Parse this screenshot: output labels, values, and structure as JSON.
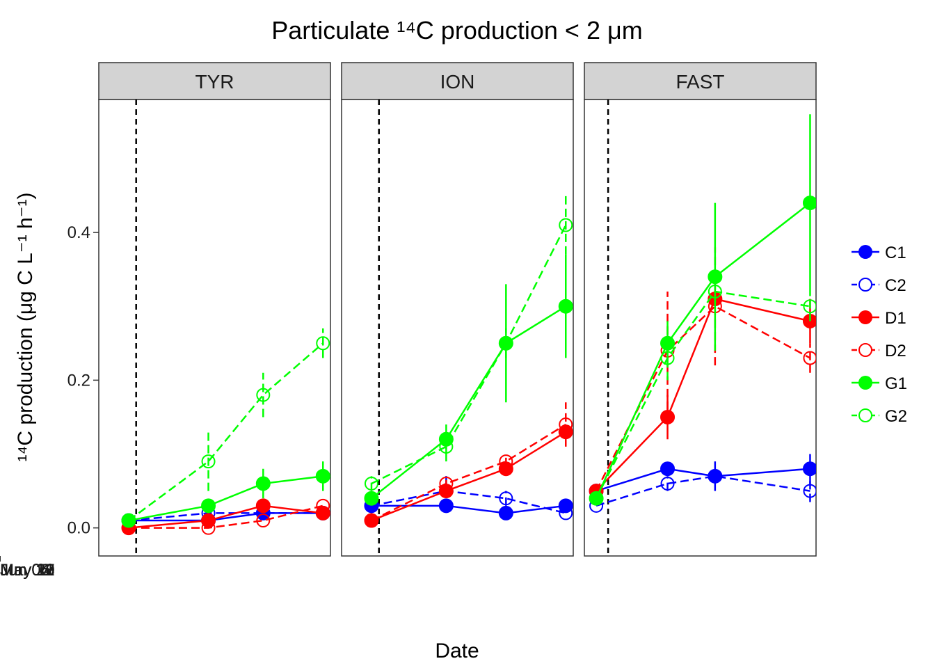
{
  "chart_data": {
    "type": "line",
    "title": "Particulate ¹⁴C production < 2 μm",
    "xlabel": "Date",
    "ylabel": "¹⁴C production (μg C L⁻¹ h⁻¹)",
    "ylim": [
      -0.038,
      0.58
    ],
    "yticks": [
      0.0,
      0.2,
      0.4
    ],
    "ytick_labels": [
      "0.0",
      "0.2",
      "0.4"
    ],
    "grid": false,
    "legend_position": "right",
    "colors": {
      "C1": "#0000ff",
      "C2": "#0000ff",
      "D1": "#ff0000",
      "D2": "#ff0000",
      "G1": "#00ff00",
      "G2": "#00ff00"
    },
    "series_styles": [
      {
        "name": "C1",
        "filled": true,
        "dashed": false
      },
      {
        "name": "C2",
        "filled": false,
        "dashed": true
      },
      {
        "name": "D1",
        "filled": true,
        "dashed": false
      },
      {
        "name": "D2",
        "filled": false,
        "dashed": true
      },
      {
        "name": "G1",
        "filled": true,
        "dashed": false
      },
      {
        "name": "G2",
        "filled": false,
        "dashed": true
      }
    ],
    "panels": [
      {
        "strip": "TYR",
        "xlim": [
          "2015-05-17 12:00",
          "2015-05-21 09:00"
        ],
        "vline": "2015-05-18 03:00",
        "xticks": [
          "2015-05-19",
          "2015-05-20",
          "2015-05-21"
        ],
        "xtick_labels": [
          "May 19",
          "May 20",
          "May 21"
        ],
        "x": [
          "2015-05-18 00:00",
          "2015-05-19 08:00",
          "2015-05-20 06:00",
          "2015-05-21 06:00"
        ],
        "series": [
          {
            "name": "C1",
            "values": [
              0.01,
              0.01,
              0.02,
              0.02
            ],
            "err": [
              0,
              0,
              0,
              0
            ]
          },
          {
            "name": "C2",
            "values": [
              0.01,
              0.02,
              0.02,
              0.02
            ],
            "err": [
              0,
              0,
              0,
              0
            ]
          },
          {
            "name": "D1",
            "values": [
              0.0,
              0.01,
              0.03,
              0.02
            ],
            "err": [
              0,
              0.005,
              0.005,
              0.005
            ]
          },
          {
            "name": "D2",
            "values": [
              0.0,
              0.0,
              0.01,
              0.03
            ],
            "err": [
              0,
              0,
              0,
              0
            ]
          },
          {
            "name": "G1",
            "values": [
              0.01,
              0.03,
              0.06,
              0.07
            ],
            "err": [
              0,
              0.005,
              0.02,
              0.02
            ]
          },
          {
            "name": "G2",
            "values": [
              0.01,
              0.09,
              0.18,
              0.25
            ],
            "err": [
              0,
              0.04,
              0.03,
              0.02
            ]
          }
        ]
      },
      {
        "strip": "ION",
        "xlim": [
          "2015-05-25 12:00",
          "2015-05-29 09:00"
        ],
        "vline": "2015-05-26 03:00",
        "xticks": [
          "2015-05-27",
          "2015-05-28",
          "2015-05-29"
        ],
        "xtick_labels": [
          "May 27",
          "May 28",
          "May 29"
        ],
        "x": [
          "2015-05-26 00:00",
          "2015-05-27 06:00",
          "2015-05-28 06:00",
          "2015-05-29 06:00"
        ],
        "series": [
          {
            "name": "C1",
            "values": [
              0.03,
              0.03,
              0.02,
              0.03
            ],
            "err": [
              0,
              0,
              0,
              0
            ]
          },
          {
            "name": "C2",
            "values": [
              0.03,
              0.05,
              0.04,
              0.02
            ],
            "err": [
              0.01,
              0.025,
              0.01,
              0
            ]
          },
          {
            "name": "D1",
            "values": [
              0.01,
              0.05,
              0.08,
              0.13
            ],
            "err": [
              0,
              0.005,
              0.005,
              0.01
            ]
          },
          {
            "name": "D2",
            "values": [
              0.01,
              0.06,
              0.09,
              0.14
            ],
            "err": [
              0,
              0.005,
              0.005,
              0.03
            ]
          },
          {
            "name": "G1",
            "values": [
              0.04,
              0.12,
              0.25,
              0.3
            ],
            "err": [
              0,
              0.02,
              0.08,
              0.07
            ]
          },
          {
            "name": "G2",
            "values": [
              0.06,
              0.11,
              0.25,
              0.41
            ],
            "err": [
              0.01,
              0.02,
              0.02,
              0.04
            ]
          }
        ]
      },
      {
        "strip": "FAST",
        "xlim": [
          "2015-06-02 12:00",
          "2015-06-07 09:00"
        ],
        "vline": "2015-06-03 00:00",
        "xticks": [
          "2015-06-04",
          "2015-06-05",
          "2015-06-06",
          "2015-06-07"
        ],
        "xtick_labels": [
          "Jun 04",
          "Jun 05",
          "Jun 06",
          "Jun 07"
        ],
        "x": [
          "2015-06-02 18:00",
          "2015-06-04 06:00",
          "2015-06-05 06:00",
          "2015-06-07 06:00"
        ],
        "series": [
          {
            "name": "C1",
            "values": [
              0.05,
              0.08,
              0.07,
              0.08
            ],
            "err": [
              0,
              0.005,
              0.02,
              0.02
            ]
          },
          {
            "name": "C2",
            "values": [
              0.03,
              0.06,
              0.07,
              0.05
            ],
            "err": [
              0,
              0.01,
              0.01,
              0.015
            ]
          },
          {
            "name": "D1",
            "values": [
              0.05,
              0.15,
              0.31,
              0.28
            ],
            "err": [
              0,
              0.03,
              0.005,
              0.03
            ]
          },
          {
            "name": "D2",
            "values": [
              0.05,
              0.24,
              0.3,
              0.23
            ],
            "err": [
              0,
              0.08,
              0.08,
              0.02
            ]
          },
          {
            "name": "G1",
            "values": [
              0.04,
              0.25,
              0.34,
              0.44
            ],
            "err": [
              0,
              0.03,
              0.1,
              0.12
            ]
          },
          {
            "name": "G2",
            "values": [
              0.04,
              0.23,
              0.32,
              0.3
            ],
            "err": [
              0,
              0.03,
              0.015,
              0.02
            ]
          }
        ]
      }
    ]
  }
}
